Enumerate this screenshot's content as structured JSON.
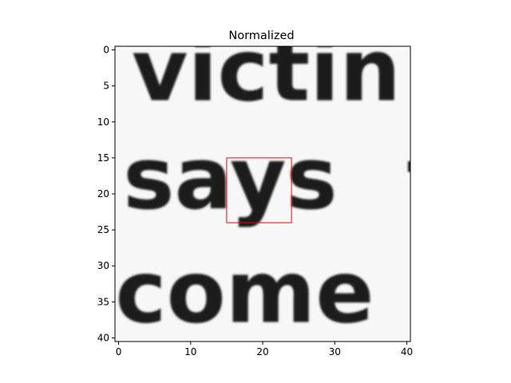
{
  "chart_data": {
    "type": "heatmap",
    "title": "Normalized",
    "content": "grayscale cropped word image showing the words 'victin', 'says' and 'come'",
    "colormap": "gray",
    "grid": false,
    "xlim": [
      -0.5,
      40.5
    ],
    "ylim": [
      40.5,
      -0.5
    ],
    "xticks": [
      0,
      10,
      20,
      30,
      40
    ],
    "yticks": [
      0,
      5,
      10,
      15,
      20,
      25,
      30,
      35,
      40
    ],
    "rectangle": {
      "x0": 15,
      "y0": 15,
      "x1": 24,
      "y1": 24,
      "color": "#ff0000"
    },
    "words": [
      {
        "text": "victin",
        "x": 20.5,
        "y": 7.0
      },
      {
        "text": "says",
        "x": 15.5,
        "y": 22.0
      },
      {
        "text": "come",
        "x": 17.5,
        "y": 37.8
      }
    ],
    "edge_glyphs": [
      {
        "text": "t",
        "x": 40.0,
        "y": 22.0
      }
    ]
  }
}
